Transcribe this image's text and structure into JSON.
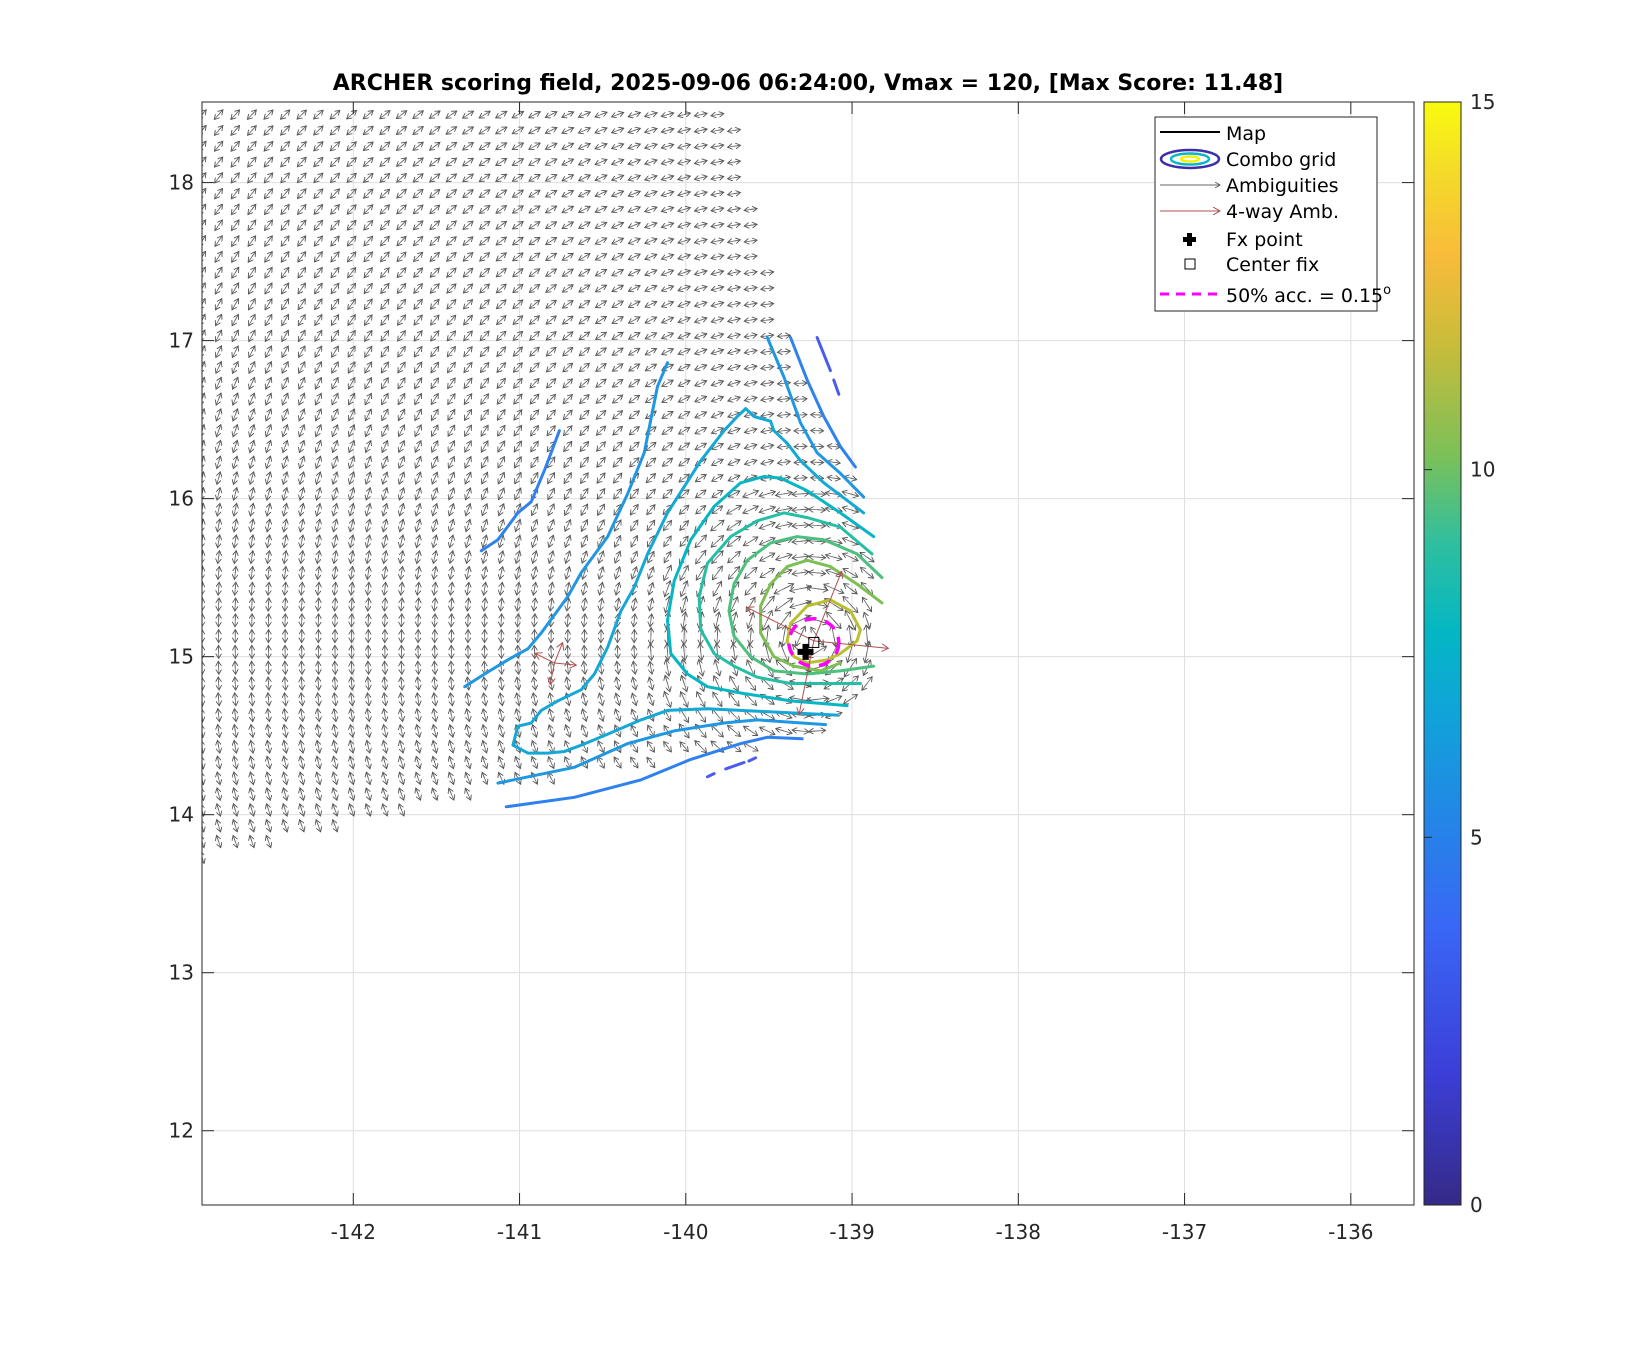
{
  "chart_data": {
    "type": "contour",
    "title": "ARCHER scoring field, 2025-09-06 06:24:00, Vmax = 120, [Max Score: 11.48]",
    "xlim": [
      -142.91,
      -135.62
    ],
    "ylim": [
      11.53,
      18.51
    ],
    "xticks": [
      -142,
      -141,
      -140,
      -139,
      -138,
      -137,
      -136
    ],
    "yticks": [
      12,
      13,
      14,
      15,
      16,
      17,
      18
    ],
    "xtick_labels": [
      "-142",
      "-141",
      "-140",
      "-139",
      "-138",
      "-137",
      "-136"
    ],
    "ytick_labels": [
      "12",
      "13",
      "14",
      "15",
      "16",
      "17",
      "18"
    ],
    "grid": true,
    "colorbar": {
      "min": 0,
      "max": 15,
      "ticks": [
        0,
        5,
        10,
        15
      ],
      "tick_labels": [
        "0",
        "5",
        "10",
        "15"
      ],
      "colormap": "parula"
    },
    "legend": {
      "placement": "top-right",
      "entries": [
        {
          "label": "Map",
          "symbol": "line",
          "color": "#000000"
        },
        {
          "label": "Combo grid",
          "symbol": "contour-ellipse"
        },
        {
          "label": "Ambiguities",
          "symbol": "arrow",
          "color": "#666666"
        },
        {
          "label": "4-way Amb.",
          "symbol": "arrow",
          "color": "#b05050"
        },
        {
          "label": "Fx point",
          "symbol": "plus-filled",
          "color": "#000000"
        },
        {
          "label": "Center fix",
          "symbol": "square-open",
          "color": "#000000"
        },
        {
          "label": "50% acc. = 0.15",
          "superscript": "o",
          "symbol": "dashed-line",
          "color": "#ff00ff"
        }
      ]
    },
    "fx_point": [
      -139.28,
      15.03
    ],
    "center_fix": [
      -139.23,
      15.09
    ],
    "accuracy_circle": {
      "center": [
        -139.23,
        15.09
      ],
      "radius_deg": 0.15,
      "color": "#ff00ff"
    },
    "four_way_ambiguities": [
      [
        -140.79,
        14.96
      ],
      [
        -139.23,
        15.1
      ]
    ],
    "wind_field": {
      "vortex_center": [
        -139.25,
        15.1
      ],
      "grid_step_deg": 0.1,
      "region": [
        [
          -142.91,
          18.51
        ],
        [
          -139.75,
          18.51
        ],
        [
          -139.55,
          17.62
        ],
        [
          -139.4,
          17.0
        ],
        [
          -139.0,
          16.2
        ],
        [
          -138.85,
          15.4
        ],
        [
          -138.9,
          14.8
        ],
        [
          -139.2,
          14.5
        ],
        [
          -140.0,
          14.35
        ],
        [
          -141.1,
          14.18
        ],
        [
          -142.91,
          13.72
        ]
      ]
    },
    "contours": [
      {
        "level": 4,
        "color": "#4a5cf0",
        "dashed": true,
        "points": [
          [
            -139.21,
            17.02
          ],
          [
            -139.13,
            16.81
          ]
        ]
      },
      {
        "level": 4,
        "color": "#4a5cf0",
        "dashed": true,
        "points": [
          [
            -139.11,
            16.75
          ],
          [
            -139.08,
            16.66
          ]
        ]
      },
      {
        "level": 4,
        "color": "#4a5cf0",
        "dashed": true,
        "points": [
          [
            -139.87,
            14.24
          ],
          [
            -139.83,
            14.26
          ]
        ]
      },
      {
        "level": 4,
        "color": "#4a5cf0",
        "dashed": true,
        "points": [
          [
            -139.76,
            14.29
          ],
          [
            -139.65,
            14.33
          ]
        ]
      },
      {
        "level": 4,
        "color": "#4a5cf0",
        "dashed": true,
        "points": [
          [
            -139.62,
            14.34
          ],
          [
            -139.58,
            14.36
          ]
        ]
      },
      {
        "level": 5,
        "color": "#2f82ee",
        "points": [
          [
            -139.37,
            17.02
          ],
          [
            -139.27,
            16.75
          ],
          [
            -139.17,
            16.52
          ],
          [
            -139.07,
            16.33
          ],
          [
            -138.98,
            16.2
          ]
        ]
      },
      {
        "level": 5,
        "color": "#2f82ee",
        "points": [
          [
            -141.08,
            14.05
          ],
          [
            -140.67,
            14.11
          ],
          [
            -140.27,
            14.22
          ],
          [
            -139.97,
            14.35
          ],
          [
            -139.67,
            14.45
          ],
          [
            -139.51,
            14.49
          ],
          [
            -139.3,
            14.48
          ]
        ]
      },
      {
        "level": 5,
        "color": "#2f82ee",
        "points": [
          [
            -141.23,
            15.67
          ],
          [
            -141.13,
            15.74
          ],
          [
            -141.01,
            15.91
          ],
          [
            -140.93,
            15.98
          ],
          [
            -140.85,
            16.18
          ],
          [
            -140.81,
            16.29
          ],
          [
            -140.76,
            16.43
          ]
        ]
      },
      {
        "level": 6,
        "color": "#1f97e2",
        "points": [
          [
            -139.51,
            17.02
          ],
          [
            -139.41,
            16.77
          ],
          [
            -139.31,
            16.48
          ],
          [
            -139.21,
            16.29
          ],
          [
            -139.07,
            16.16
          ],
          [
            -138.93,
            16.01
          ]
        ]
      },
      {
        "level": 6,
        "color": "#1f97e2",
        "points": [
          [
            -141.13,
            14.2
          ],
          [
            -140.67,
            14.3
          ],
          [
            -140.35,
            14.45
          ],
          [
            -140.07,
            14.53
          ],
          [
            -139.77,
            14.58
          ],
          [
            -139.57,
            14.6
          ],
          [
            -139.16,
            14.57
          ]
        ]
      },
      {
        "level": 6,
        "color": "#1f97e2",
        "points": [
          [
            -140.11,
            16.86
          ],
          [
            -140.17,
            16.71
          ],
          [
            -140.25,
            16.29
          ],
          [
            -140.35,
            16.03
          ],
          [
            -140.47,
            15.76
          ],
          [
            -140.63,
            15.53
          ],
          [
            -140.71,
            15.38
          ],
          [
            -140.87,
            15.15
          ],
          [
            -140.95,
            15.05
          ],
          [
            -141.07,
            14.98
          ],
          [
            -141.21,
            14.89
          ],
          [
            -141.33,
            14.81
          ]
        ]
      },
      {
        "level": 6.5,
        "color": "#14a8d6",
        "points": [
          [
            -138.93,
            15.91
          ],
          [
            -139.17,
            16.1
          ],
          [
            -139.31,
            16.24
          ],
          [
            -139.39,
            16.35
          ],
          [
            -139.47,
            16.43
          ],
          [
            -139.49,
            16.49
          ],
          [
            -139.59,
            16.52
          ],
          [
            -139.64,
            16.57
          ],
          [
            -139.69,
            16.52
          ],
          [
            -139.77,
            16.43
          ],
          [
            -139.91,
            16.24
          ],
          [
            -140.11,
            15.91
          ],
          [
            -140.23,
            15.65
          ],
          [
            -140.31,
            15.44
          ],
          [
            -140.39,
            15.29
          ],
          [
            -140.47,
            15.06
          ],
          [
            -140.55,
            14.89
          ],
          [
            -140.63,
            14.79
          ],
          [
            -140.77,
            14.72
          ],
          [
            -140.87,
            14.66
          ],
          [
            -140.93,
            14.58
          ],
          [
            -141.01,
            14.56
          ],
          [
            -141.04,
            14.44
          ],
          [
            -140.95,
            14.39
          ],
          [
            -140.83,
            14.39
          ],
          [
            -140.73,
            14.4
          ],
          [
            -140.63,
            14.44
          ],
          [
            -140.47,
            14.51
          ],
          [
            -140.27,
            14.6
          ],
          [
            -140.11,
            14.66
          ],
          [
            -139.87,
            14.67
          ],
          [
            -139.47,
            14.65
          ],
          [
            -139.09,
            14.63
          ]
        ]
      },
      {
        "level": 7.5,
        "color": "#05b6c4",
        "points": [
          [
            -138.87,
            15.76
          ],
          [
            -139.07,
            15.91
          ],
          [
            -139.27,
            16.05
          ],
          [
            -139.43,
            16.13
          ],
          [
            -139.53,
            16.14
          ],
          [
            -139.67,
            16.1
          ],
          [
            -139.83,
            15.95
          ],
          [
            -139.97,
            15.74
          ],
          [
            -140.07,
            15.48
          ],
          [
            -140.11,
            15.23
          ],
          [
            -140.09,
            15.02
          ],
          [
            -139.99,
            14.89
          ],
          [
            -139.87,
            14.81
          ],
          [
            -139.67,
            14.77
          ],
          [
            -139.37,
            14.72
          ],
          [
            -139.03,
            14.69
          ]
        ]
      },
      {
        "level": 8,
        "color": "#26bea5",
        "points": [
          [
            -138.88,
            15.65
          ],
          [
            -139.07,
            15.82
          ],
          [
            -139.27,
            15.88
          ],
          [
            -139.41,
            15.91
          ],
          [
            -139.57,
            15.86
          ],
          [
            -139.73,
            15.76
          ],
          [
            -139.87,
            15.59
          ],
          [
            -139.92,
            15.38
          ],
          [
            -139.91,
            15.17
          ],
          [
            -139.83,
            15.02
          ],
          [
            -139.71,
            14.94
          ],
          [
            -139.57,
            14.87
          ],
          [
            -139.37,
            14.83
          ],
          [
            -138.95,
            14.83
          ]
        ]
      },
      {
        "level": 9,
        "color": "#4cc07e",
        "points": [
          [
            -138.82,
            15.5
          ],
          [
            -138.97,
            15.65
          ],
          [
            -139.17,
            15.74
          ],
          [
            -139.33,
            15.76
          ],
          [
            -139.49,
            15.72
          ],
          [
            -139.63,
            15.61
          ],
          [
            -139.71,
            15.46
          ],
          [
            -139.74,
            15.29
          ],
          [
            -139.71,
            15.13
          ],
          [
            -139.61,
            15.0
          ],
          [
            -139.47,
            14.91
          ],
          [
            -139.27,
            14.89
          ],
          [
            -139.07,
            14.91
          ],
          [
            -138.87,
            14.94
          ]
        ]
      },
      {
        "level": 10,
        "color": "#7cbf52",
        "points": [
          [
            -138.82,
            15.34
          ],
          [
            -138.97,
            15.46
          ],
          [
            -139.13,
            15.57
          ],
          [
            -139.27,
            15.61
          ],
          [
            -139.39,
            15.57
          ],
          [
            -139.49,
            15.46
          ],
          [
            -139.55,
            15.32
          ],
          [
            -139.55,
            15.15
          ],
          [
            -139.47,
            15.0
          ],
          [
            -139.35,
            14.94
          ],
          [
            -139.19,
            14.91
          ],
          [
            -139.07,
            14.96
          ]
        ]
      },
      {
        "level": 11,
        "color": "#b9bf2e",
        "points": [
          [
            -139.13,
            15.36
          ],
          [
            -139.01,
            15.29
          ],
          [
            -138.95,
            15.17
          ],
          [
            -138.97,
            15.1
          ],
          [
            -139.07,
            15.02
          ],
          [
            -139.15,
            14.98
          ],
          [
            -139.27,
            14.96
          ],
          [
            -139.35,
            15.0
          ],
          [
            -139.39,
            15.1
          ],
          [
            -139.37,
            15.21
          ],
          [
            -139.27,
            15.32
          ],
          [
            -139.13,
            15.36
          ]
        ]
      }
    ]
  }
}
